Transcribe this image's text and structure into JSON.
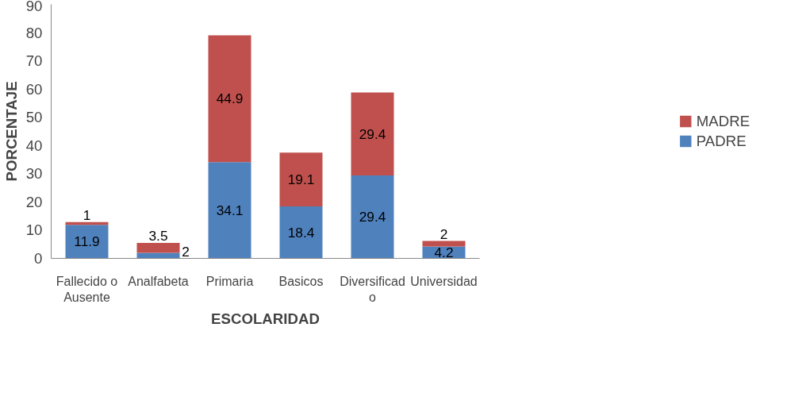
{
  "chart_data": {
    "type": "bar",
    "stacked": true,
    "xlabel": "ESCOLARIDAD",
    "ylabel": "PORCENTAJE",
    "categories": [
      "Fallecido o Ausente",
      "Analfabeta",
      "Primaria",
      "Basicos",
      "Diversificado",
      "Universidad"
    ],
    "series": [
      {
        "name": "PADRE",
        "color": "#4f81bd",
        "values": [
          11.9,
          2,
          34.1,
          18.4,
          29.4,
          4.2
        ]
      },
      {
        "name": "MADRE",
        "color": "#c0504d",
        "values": [
          1,
          3.5,
          44.9,
          19.1,
          29.4,
          2
        ]
      }
    ],
    "ylim": [
      0,
      90
    ],
    "yticks": [
      0,
      10,
      20,
      30,
      40,
      50,
      60,
      70,
      80,
      90
    ],
    "grid": false,
    "legend": "right",
    "data_labels": true
  }
}
